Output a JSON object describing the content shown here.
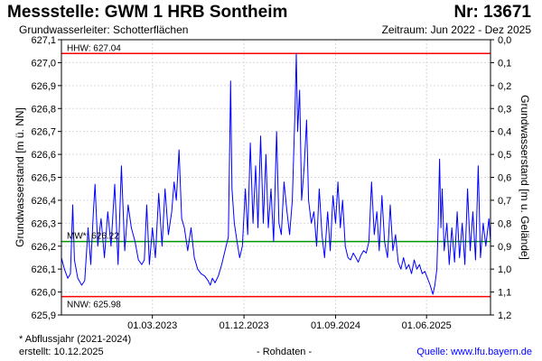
{
  "header": {
    "title": "Messstelle: GWM 1 HRB Sontheim",
    "station_nr": "Nr: 13671",
    "aquifer": "Grundwasserleiter:   Schotterflächen",
    "period": "Zeitraum: Jun 2022 - Dez 2025"
  },
  "footer": {
    "footnote": "* Abflussjahr (2021-2024)",
    "created": "erstellt:  10.12.2025",
    "raw_data": "- Rohdaten -",
    "source": "Quelle: www.lfu.bayern.de"
  },
  "colors": {
    "series": "#0000ff",
    "extreme_lines": "#ff0000",
    "mean_line": "#009900",
    "grid": "#d9d9d9",
    "source_link": "#0000ff"
  },
  "chart_data": {
    "type": "line",
    "ylabel_left": "Grundwasserstand [m ü. NN]",
    "ylabel_right": "Grundwasserstand [m u. Gelände]",
    "ylim_left": [
      625.9,
      627.1
    ],
    "ylim_right": [
      0.0,
      1.2
    ],
    "yticks_left": [
      "627,1",
      "627,0",
      "626,9",
      "626,8",
      "626,7",
      "626,6",
      "626,5",
      "626,4",
      "626,3",
      "626,2",
      "626,1",
      "626,0",
      "625,9"
    ],
    "yticks_right": [
      "0,0",
      "0,1",
      "0,2",
      "0,3",
      "0,4",
      "0,5",
      "0,6",
      "0,7",
      "0,8",
      "0,9",
      "1,0",
      "1,1",
      "1,2"
    ],
    "x_range": [
      "2022-06-01",
      "2025-12-10"
    ],
    "xticks": [
      {
        "date": "2023-03-01",
        "label": "01.03.2023"
      },
      {
        "date": "2023-12-01",
        "label": "01.12.2023"
      },
      {
        "date": "2024-09-01",
        "label": "01.09.2024"
      },
      {
        "date": "2025-06-01",
        "label": "01.06.2025"
      }
    ],
    "grid": true,
    "reference_lines": [
      {
        "label": "HHW: 627.04",
        "value": 627.04,
        "kind": "extreme"
      },
      {
        "label": "MW*: 626.22",
        "value": 626.22,
        "kind": "mean"
      },
      {
        "label": "NNW: 625.98",
        "value": 625.98,
        "kind": "extreme"
      }
    ],
    "series": [
      {
        "points": [
          [
            "2022-06-01",
            626.15
          ],
          [
            "2022-06-10",
            626.1
          ],
          [
            "2022-06-20",
            626.06
          ],
          [
            "2022-06-28",
            626.08
          ],
          [
            "2022-07-05",
            626.38
          ],
          [
            "2022-07-10",
            626.14
          ],
          [
            "2022-07-20",
            626.06
          ],
          [
            "2022-08-01",
            626.03
          ],
          [
            "2022-08-10",
            626.05
          ],
          [
            "2022-08-20",
            626.28
          ],
          [
            "2022-08-28",
            626.12
          ],
          [
            "2022-09-05",
            626.35
          ],
          [
            "2022-09-10",
            626.47
          ],
          [
            "2022-09-18",
            626.2
          ],
          [
            "2022-09-28",
            626.32
          ],
          [
            "2022-10-08",
            626.15
          ],
          [
            "2022-10-18",
            626.35
          ],
          [
            "2022-10-28",
            626.2
          ],
          [
            "2022-11-08",
            626.47
          ],
          [
            "2022-11-18",
            626.12
          ],
          [
            "2022-11-28",
            626.55
          ],
          [
            "2022-12-08",
            626.18
          ],
          [
            "2022-12-18",
            626.38
          ],
          [
            "2022-12-28",
            626.28
          ],
          [
            "2023-01-08",
            626.22
          ],
          [
            "2023-01-18",
            626.14
          ],
          [
            "2023-01-28",
            626.12
          ],
          [
            "2023-02-05",
            626.14
          ],
          [
            "2023-02-12",
            626.38
          ],
          [
            "2023-02-20",
            626.12
          ],
          [
            "2023-03-01",
            626.28
          ],
          [
            "2023-03-10",
            626.15
          ],
          [
            "2023-03-20",
            626.43
          ],
          [
            "2023-03-30",
            626.2
          ],
          [
            "2023-04-08",
            626.45
          ],
          [
            "2023-04-18",
            626.25
          ],
          [
            "2023-04-28",
            626.35
          ],
          [
            "2023-05-05",
            626.48
          ],
          [
            "2023-05-12",
            626.4
          ],
          [
            "2023-05-20",
            626.62
          ],
          [
            "2023-05-28",
            626.32
          ],
          [
            "2023-06-05",
            626.28
          ],
          [
            "2023-06-15",
            626.18
          ],
          [
            "2023-06-25",
            626.28
          ],
          [
            "2023-07-05",
            626.15
          ],
          [
            "2023-07-15",
            626.1
          ],
          [
            "2023-07-25",
            626.08
          ],
          [
            "2023-08-05",
            626.07
          ],
          [
            "2023-08-15",
            626.05
          ],
          [
            "2023-08-22",
            626.03
          ],
          [
            "2023-08-28",
            626.06
          ],
          [
            "2023-09-05",
            626.04
          ],
          [
            "2023-09-15",
            626.07
          ],
          [
            "2023-09-25",
            626.12
          ],
          [
            "2023-10-05",
            626.18
          ],
          [
            "2023-10-15",
            626.24
          ],
          [
            "2023-10-22",
            626.92
          ],
          [
            "2023-10-26",
            626.45
          ],
          [
            "2023-11-02",
            626.3
          ],
          [
            "2023-11-10",
            626.22
          ],
          [
            "2023-11-18",
            626.15
          ],
          [
            "2023-11-26",
            626.2
          ],
          [
            "2023-12-05",
            626.45
          ],
          [
            "2023-12-12",
            626.25
          ],
          [
            "2023-12-20",
            626.65
          ],
          [
            "2023-12-28",
            626.3
          ],
          [
            "2024-01-05",
            626.55
          ],
          [
            "2024-01-12",
            626.28
          ],
          [
            "2024-01-20",
            626.68
          ],
          [
            "2024-01-28",
            626.3
          ],
          [
            "2024-02-05",
            626.6
          ],
          [
            "2024-02-12",
            626.28
          ],
          [
            "2024-02-20",
            626.45
          ],
          [
            "2024-02-28",
            626.22
          ],
          [
            "2024-03-08",
            626.7
          ],
          [
            "2024-03-15",
            626.3
          ],
          [
            "2024-03-22",
            626.25
          ],
          [
            "2024-03-30",
            626.48
          ],
          [
            "2024-04-08",
            626.35
          ],
          [
            "2024-04-16",
            626.25
          ],
          [
            "2024-04-24",
            626.4
          ],
          [
            "2024-05-02",
            626.78
          ],
          [
            "2024-05-06",
            627.04
          ],
          [
            "2024-05-10",
            626.7
          ],
          [
            "2024-05-16",
            626.88
          ],
          [
            "2024-05-22",
            626.4
          ],
          [
            "2024-05-30",
            626.55
          ],
          [
            "2024-06-06",
            626.75
          ],
          [
            "2024-06-12",
            626.4
          ],
          [
            "2024-06-20",
            626.3
          ],
          [
            "2024-06-28",
            626.35
          ],
          [
            "2024-07-06",
            626.2
          ],
          [
            "2024-07-14",
            626.45
          ],
          [
            "2024-07-22",
            626.25
          ],
          [
            "2024-07-30",
            626.15
          ],
          [
            "2024-08-08",
            626.35
          ],
          [
            "2024-08-16",
            626.18
          ],
          [
            "2024-08-24",
            626.42
          ],
          [
            "2024-09-01",
            626.3
          ],
          [
            "2024-09-08",
            626.48
          ],
          [
            "2024-09-15",
            626.28
          ],
          [
            "2024-09-22",
            626.4
          ],
          [
            "2024-09-30",
            626.2
          ],
          [
            "2024-10-08",
            626.15
          ],
          [
            "2024-10-16",
            626.14
          ],
          [
            "2024-10-24",
            626.17
          ],
          [
            "2024-11-01",
            626.15
          ],
          [
            "2024-11-08",
            626.13
          ],
          [
            "2024-11-16",
            626.16
          ],
          [
            "2024-11-24",
            626.18
          ],
          [
            "2024-12-02",
            626.17
          ],
          [
            "2024-12-10",
            626.22
          ],
          [
            "2024-12-18",
            626.48
          ],
          [
            "2024-12-26",
            626.25
          ],
          [
            "2025-01-03",
            626.35
          ],
          [
            "2025-01-10",
            626.18
          ],
          [
            "2025-01-18",
            626.42
          ],
          [
            "2025-01-26",
            626.22
          ],
          [
            "2025-02-04",
            626.15
          ],
          [
            "2025-02-12",
            626.38
          ],
          [
            "2025-02-20",
            626.18
          ],
          [
            "2025-02-28",
            626.25
          ],
          [
            "2025-03-08",
            626.13
          ],
          [
            "2025-03-16",
            626.1
          ],
          [
            "2025-03-24",
            626.15
          ],
          [
            "2025-04-01",
            626.1
          ],
          [
            "2025-04-09",
            626.12
          ],
          [
            "2025-04-17",
            626.08
          ],
          [
            "2025-04-25",
            626.14
          ],
          [
            "2025-05-03",
            626.1
          ],
          [
            "2025-05-11",
            626.12
          ],
          [
            "2025-05-19",
            626.08
          ],
          [
            "2025-05-27",
            626.09
          ],
          [
            "2025-06-04",
            626.06
          ],
          [
            "2025-06-12",
            626.03
          ],
          [
            "2025-06-20",
            625.99
          ],
          [
            "2025-06-26",
            626.03
          ],
          [
            "2025-07-02",
            626.1
          ],
          [
            "2025-07-06",
            626.3
          ],
          [
            "2025-07-10",
            626.58
          ],
          [
            "2025-07-14",
            626.28
          ],
          [
            "2025-07-18",
            626.45
          ],
          [
            "2025-07-24",
            626.18
          ],
          [
            "2025-08-01",
            626.3
          ],
          [
            "2025-08-08",
            626.12
          ],
          [
            "2025-08-16",
            626.28
          ],
          [
            "2025-08-24",
            626.13
          ],
          [
            "2025-09-01",
            626.35
          ],
          [
            "2025-09-08",
            626.15
          ],
          [
            "2025-09-16",
            626.3
          ],
          [
            "2025-09-24",
            626.12
          ],
          [
            "2025-10-02",
            626.45
          ],
          [
            "2025-10-10",
            626.18
          ],
          [
            "2025-10-18",
            626.35
          ],
          [
            "2025-10-26",
            626.14
          ],
          [
            "2025-11-03",
            626.55
          ],
          [
            "2025-11-10",
            626.15
          ],
          [
            "2025-11-18",
            626.3
          ],
          [
            "2025-11-26",
            626.2
          ],
          [
            "2025-12-05",
            626.32
          ],
          [
            "2025-12-10",
            626.22
          ]
        ]
      }
    ]
  }
}
